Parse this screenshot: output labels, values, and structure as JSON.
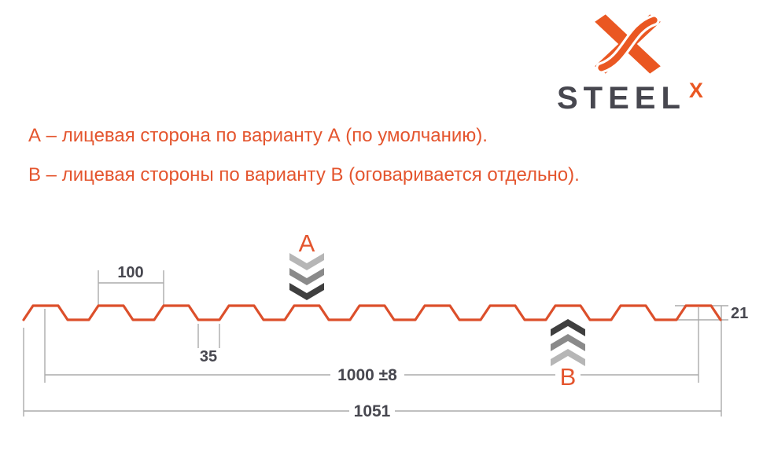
{
  "logo": {
    "brand": "STEEL",
    "brand_sup": "X"
  },
  "notes": {
    "line_a": "А – лицевая сторона по варианту А (по умолчанию).",
    "line_b": "В – лицевая стороны по варианту В (оговаривается отдельно)."
  },
  "diagram": {
    "marker_a": "А",
    "marker_b": "В",
    "dim_pitch": "100",
    "dim_valley": "35",
    "dim_cover": "1000 ±8",
    "dim_overall": "1051",
    "dim_height": "21"
  },
  "colors": {
    "accent_orange": "#e4552e",
    "logo_orange": "#ea5722",
    "profile_orange": "#dc4f2b",
    "dark_slate": "#47474f",
    "dim_line_gray": "#ababab",
    "chevron_light": "#b6b6b6",
    "chevron_mid": "#8a8a8a",
    "chevron_dark": "#3f3f3f",
    "background": "#ffffff"
  }
}
